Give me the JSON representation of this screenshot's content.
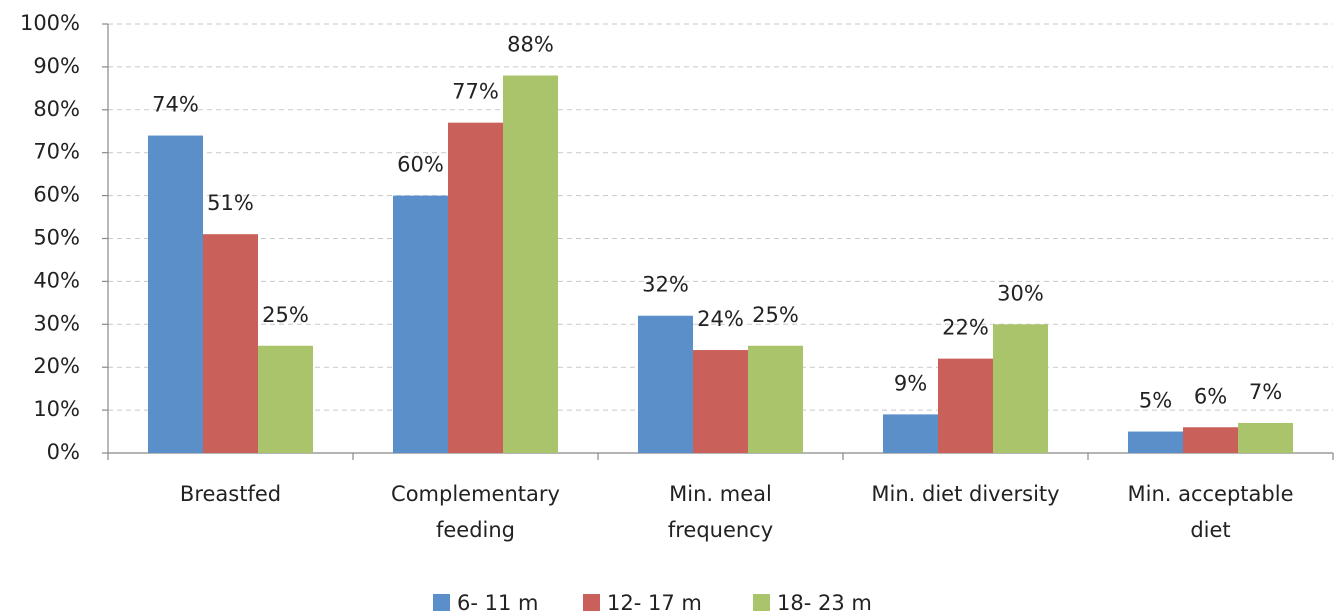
{
  "chart_data": {
    "type": "bar",
    "categories": [
      [
        "Breastfed"
      ],
      [
        "Complementary",
        "feeding"
      ],
      [
        "Min. meal",
        "frequency"
      ],
      [
        "Min. diet diversity"
      ],
      [
        "Min. acceptable",
        "diet"
      ]
    ],
    "series": [
      {
        "name": "6- 11 m",
        "color": "#5b8fc9",
        "values": [
          74,
          60,
          32,
          9,
          5
        ],
        "value_labels": [
          "74%",
          "60%",
          "32%",
          "9%",
          "5%"
        ]
      },
      {
        "name": "12- 17 m",
        "color": "#c9605a",
        "values": [
          51,
          77,
          24,
          22,
          6
        ],
        "value_labels": [
          "51%",
          "77%",
          "24%",
          "22%",
          "6%"
        ]
      },
      {
        "name": "18- 23 m",
        "color": "#a9c46a",
        "values": [
          25,
          88,
          25,
          30,
          7
        ],
        "value_labels": [
          "25%",
          "88%",
          "25%",
          "30%",
          "7%"
        ]
      }
    ],
    "ylim": [
      0,
      100
    ],
    "yticks": [
      {
        "value": 0,
        "label": "0%"
      },
      {
        "value": 10,
        "label": "10%"
      },
      {
        "value": 20,
        "label": "20%"
      },
      {
        "value": 30,
        "label": "30%"
      },
      {
        "value": 40,
        "label": "40%"
      },
      {
        "value": 50,
        "label": "50%"
      },
      {
        "value": 60,
        "label": "60%"
      },
      {
        "value": 70,
        "label": "70%"
      },
      {
        "value": 80,
        "label": "80%"
      },
      {
        "value": 90,
        "label": "90%"
      },
      {
        "value": 100,
        "label": "100%"
      }
    ],
    "grid": true,
    "legend": "bottom"
  }
}
